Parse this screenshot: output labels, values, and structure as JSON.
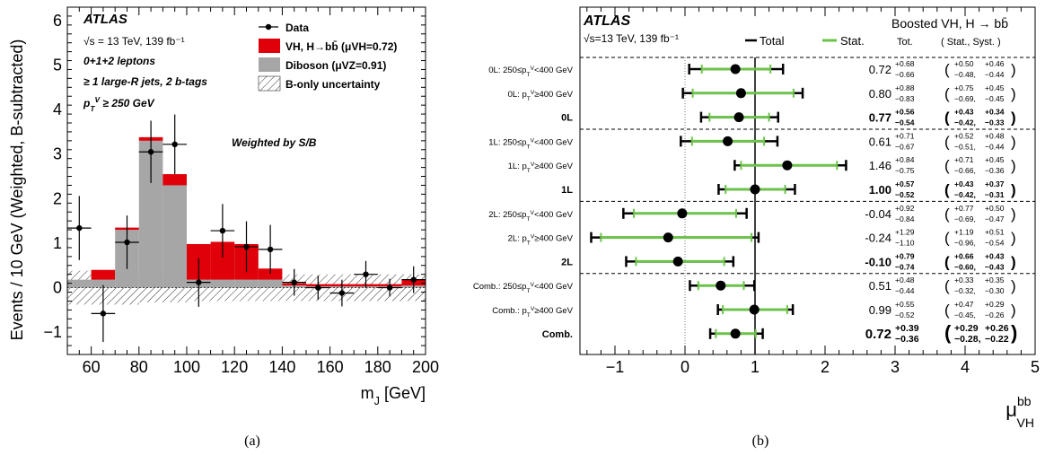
{
  "colors": {
    "vh": "#e0000a",
    "diboson": "#a6a6a6",
    "stat": "#6cc24a",
    "data": "#000000"
  },
  "chart_data": [
    {
      "type": "bar",
      "panel_caption": "(a)",
      "experiment": "ATLAS",
      "info_lines": [
        "√s = 13 TeV, 139 fb⁻¹",
        "0+1+2 leptons",
        "≥ 1 large-R jets, 2 b-tags",
        "pT^V ≥ 250 GeV"
      ],
      "annotation": "Weighted by S/B",
      "xlabel": "m_J [GeV]",
      "ylabel": "Events / 10 GeV (Weighted, B-subtracted)",
      "xlim": [
        50,
        200
      ],
      "ylim": [
        -1.5,
        6.3
      ],
      "xticks": [
        60,
        80,
        100,
        120,
        140,
        160,
        180,
        200
      ],
      "yticks": [
        -1,
        0,
        1,
        2,
        3,
        4,
        5,
        6
      ],
      "legend": {
        "placement": "top-right",
        "entries": [
          "Data",
          "VH, H→bb̄ (μVH=0.72)",
          "Diboson (μVZ=0.91)",
          "B-only uncertainty"
        ]
      },
      "bin_edges": [
        50,
        60,
        70,
        80,
        90,
        100,
        110,
        120,
        130,
        140,
        150,
        160,
        170,
        180,
        190,
        200
      ],
      "diboson": [
        0.18,
        0.18,
        1.3,
        3.3,
        2.3,
        0.18,
        0.18,
        0.18,
        0.18,
        0.05,
        0.03,
        0.03,
        0.03,
        0.03,
        0.05
      ],
      "vh": [
        0.0,
        0.22,
        0.05,
        0.08,
        0.25,
        0.8,
        0.85,
        0.8,
        0.25,
        0.05,
        0.05,
        0.05,
        0.05,
        0.05,
        0.13
      ],
      "bonly_unc": [
        0.38,
        0.38,
        0.38,
        0.33,
        0.33,
        0.3,
        0.3,
        0.3,
        0.3,
        0.3,
        0.3,
        0.3,
        0.3,
        0.3,
        0.3
      ],
      "data": [
        {
          "x": 55,
          "y": 1.34,
          "err": 0.72
        },
        {
          "x": 65,
          "y": -0.58,
          "err": 0.64
        },
        {
          "x": 75,
          "y": 1.02,
          "err": 0.6
        },
        {
          "x": 85,
          "y": 3.05,
          "err": 0.7
        },
        {
          "x": 95,
          "y": 3.22,
          "err": 0.67
        },
        {
          "x": 105,
          "y": 0.12,
          "err": 0.55
        },
        {
          "x": 115,
          "y": 1.28,
          "err": 0.6
        },
        {
          "x": 125,
          "y": 0.92,
          "err": 0.57
        },
        {
          "x": 135,
          "y": 0.86,
          "err": 0.55
        },
        {
          "x": 145,
          "y": 0.12,
          "err": 0.3
        },
        {
          "x": 155,
          "y": 0.0,
          "err": 0.27
        },
        {
          "x": 165,
          "y": -0.12,
          "err": 0.3
        },
        {
          "x": 175,
          "y": 0.3,
          "err": 0.3
        },
        {
          "x": 185,
          "y": 0.0,
          "err": 0.2
        },
        {
          "x": 195,
          "y": 0.18,
          "err": 0.3
        }
      ]
    },
    {
      "type": "scatter",
      "panel_caption": "(b)",
      "experiment": "ATLAS",
      "energy_label": "√s=13 TeV, 139 fb⁻¹",
      "analysis_label": "Boosted VH, H → bb̄",
      "legend": {
        "placement": "top",
        "entries": [
          "Total",
          "Stat."
        ]
      },
      "col_headers": {
        "tot": "Tot.",
        "statsyst": "( Stat., Syst. )"
      },
      "xlabel": "μ_VH^bb",
      "xlim": [
        -1.5,
        5.0
      ],
      "xticks": [
        -1,
        0,
        1,
        2,
        3,
        4,
        5
      ],
      "sm_reference": 1.0,
      "rows": [
        {
          "label": "0L: 250≤pT^V<400 GeV",
          "bold": false,
          "mu": 0.72,
          "mu_text": "0.72",
          "tot_up": "+0.68",
          "tot_dn": "−0.66",
          "tu": 0.68,
          "td": 0.66,
          "su": 0.5,
          "sd": 0.48,
          "stat_up": "+0.50",
          "stat_dn": "−0.48",
          "syst_up": "+0.46",
          "syst_dn": "−0.44",
          "sep_after": false
        },
        {
          "label": "0L: pT^V≥400 GeV",
          "bold": false,
          "mu": 0.8,
          "mu_text": "0.80",
          "tot_up": "+0.88",
          "tot_dn": "−0.83",
          "tu": 0.88,
          "td": 0.83,
          "su": 0.75,
          "sd": 0.69,
          "stat_up": "+0.75",
          "stat_dn": "−0.69",
          "syst_up": "+0.45",
          "syst_dn": "−0.45",
          "sep_after": false
        },
        {
          "label": "0L",
          "bold": true,
          "mu": 0.77,
          "mu_text": "0.77",
          "tot_up": "+0.56",
          "tot_dn": "−0.54",
          "tu": 0.56,
          "td": 0.54,
          "su": 0.43,
          "sd": 0.42,
          "stat_up": "+0.43",
          "stat_dn": "−0.42",
          "syst_up": "+0.34",
          "syst_dn": "−0.33",
          "sep_after": true
        },
        {
          "label": "1L: 250≤pT^V<400 GeV",
          "bold": false,
          "mu": 0.61,
          "mu_text": "0.61",
          "tot_up": "+0.71",
          "tot_dn": "−0.67",
          "tu": 0.71,
          "td": 0.67,
          "su": 0.52,
          "sd": 0.51,
          "stat_up": "+0.52",
          "stat_dn": "−0.51",
          "syst_up": "+0.48",
          "syst_dn": "−0.44",
          "sep_after": false
        },
        {
          "label": "1L: pT^V≥400 GeV",
          "bold": false,
          "mu": 1.46,
          "mu_text": "1.46",
          "tot_up": "+0.84",
          "tot_dn": "−0.75",
          "tu": 0.84,
          "td": 0.75,
          "su": 0.71,
          "sd": 0.66,
          "stat_up": "+0.71",
          "stat_dn": "−0.66",
          "syst_up": "+0.45",
          "syst_dn": "−0.36",
          "sep_after": false
        },
        {
          "label": "1L",
          "bold": true,
          "mu": 1.0,
          "mu_text": "1.00",
          "tot_up": "+0.57",
          "tot_dn": "−0.52",
          "tu": 0.57,
          "td": 0.52,
          "su": 0.43,
          "sd": 0.42,
          "stat_up": "+0.43",
          "stat_dn": "−0.42",
          "syst_up": "+0.37",
          "syst_dn": "−0.31",
          "sep_after": true
        },
        {
          "label": "2L: 250≤pT^V<400 GeV",
          "bold": false,
          "mu": -0.04,
          "mu_text": "-0.04",
          "tot_up": "+0.92",
          "tot_dn": "−0.84",
          "tu": 0.92,
          "td": 0.84,
          "su": 0.77,
          "sd": 0.69,
          "stat_up": "+0.77",
          "stat_dn": "−0.69",
          "syst_up": "+0.50",
          "syst_dn": "−0.47",
          "sep_after": false
        },
        {
          "label": "2L: pT^V≥400 GeV",
          "bold": false,
          "mu": -0.24,
          "mu_text": "-0.24",
          "tot_up": "+1.29",
          "tot_dn": "−1.10",
          "tu": 1.29,
          "td": 1.1,
          "su": 1.19,
          "sd": 0.96,
          "stat_up": "+1.19",
          "stat_dn": "−0.96",
          "syst_up": "+0.51",
          "syst_dn": "−0.54",
          "sep_after": false
        },
        {
          "label": "2L",
          "bold": true,
          "mu": -0.1,
          "mu_text": "-0.10",
          "tot_up": "+0.79",
          "tot_dn": "−0.74",
          "tu": 0.79,
          "td": 0.74,
          "su": 0.66,
          "sd": 0.6,
          "stat_up": "+0.66",
          "stat_dn": "−0.60",
          "syst_up": "+0.43",
          "syst_dn": "−0.43",
          "sep_after": true
        },
        {
          "label": "Comb.: 250≤pT^V<400 GeV",
          "bold": false,
          "mu": 0.51,
          "mu_text": "0.51",
          "tot_up": "+0.48",
          "tot_dn": "−0.44",
          "tu": 0.48,
          "td": 0.44,
          "su": 0.33,
          "sd": 0.32,
          "stat_up": "+0.33",
          "stat_dn": "−0.32",
          "syst_up": "+0.35",
          "syst_dn": "−0.30",
          "sep_after": false
        },
        {
          "label": "Comb.: pT^V≥400 GeV",
          "bold": false,
          "mu": 0.99,
          "mu_text": "0.99",
          "tot_up": "+0.55",
          "tot_dn": "−0.52",
          "tu": 0.55,
          "td": 0.52,
          "su": 0.47,
          "sd": 0.45,
          "stat_up": "+0.47",
          "stat_dn": "−0.45",
          "syst_up": "+0.29",
          "syst_dn": "−0.26",
          "sep_after": false
        },
        {
          "label": "Comb.",
          "bold": true,
          "big": true,
          "mu": 0.72,
          "mu_text": "0.72",
          "tot_up": "+0.39",
          "tot_dn": "−0.36",
          "tu": 0.39,
          "td": 0.36,
          "su": 0.29,
          "sd": 0.28,
          "stat_up": "+0.29",
          "stat_dn": "−0.28",
          "syst_up": "+0.26",
          "syst_dn": "−0.22",
          "sep_after": false
        }
      ]
    }
  ]
}
